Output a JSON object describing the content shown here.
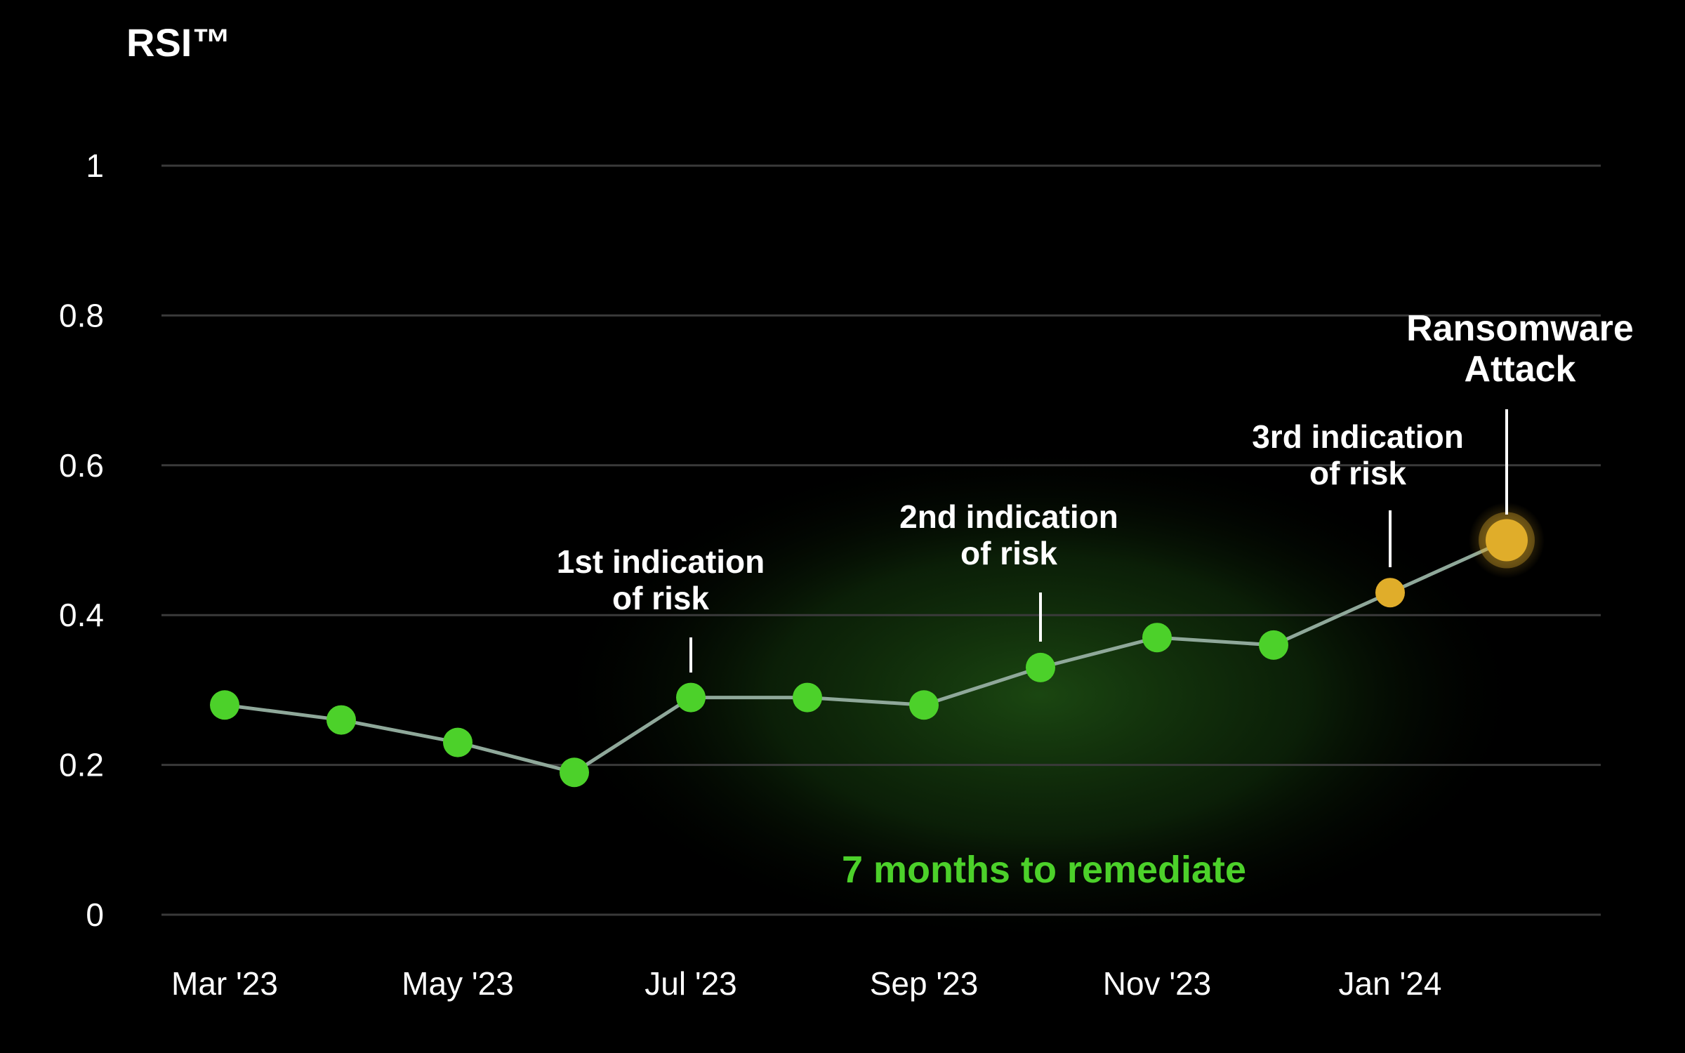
{
  "chart_data": {
    "type": "line",
    "title": "RSI™",
    "xlabel": "",
    "ylabel": "",
    "ylim": [
      0,
      1
    ],
    "yticks": [
      "0",
      "0.2",
      "0.4",
      "0.6",
      "0.8",
      "1"
    ],
    "x_tick_labels": [
      "Mar '23",
      "May '23",
      "Jul '23",
      "Sep '23",
      "Nov '23",
      "Jan '24"
    ],
    "x": [
      "2023-03",
      "2023-04",
      "2023-05",
      "2023-06",
      "2023-07",
      "2023-08",
      "2023-09",
      "2023-10",
      "2023-11",
      "2023-12",
      "2024-01",
      "2024-02"
    ],
    "series": [
      {
        "values": [
          0.28,
          0.26,
          0.23,
          0.19,
          0.29,
          0.29,
          0.28,
          0.33,
          0.37,
          0.36,
          0.43,
          0.5
        ]
      }
    ],
    "grid": true,
    "colors": {
      "point": "#4cd12a",
      "warning": "#e0ad2a",
      "line": "#8fa89a",
      "grid": "#3a3a3a",
      "background": "#000000",
      "glow": "#1c4a12"
    },
    "annotations": [
      {
        "text_lines": [
          "1st indication",
          "of risk"
        ],
        "x": "2023-07"
      },
      {
        "text_lines": [
          "2nd indication",
          "of risk"
        ],
        "x": "2023-10"
      },
      {
        "text_lines": [
          "3rd indication",
          "of risk"
        ],
        "x": "2024-01"
      },
      {
        "text_lines": [
          "Ransomware",
          "Attack"
        ],
        "x": "2024-02"
      }
    ],
    "remediation_label": "7 months to remediate"
  }
}
